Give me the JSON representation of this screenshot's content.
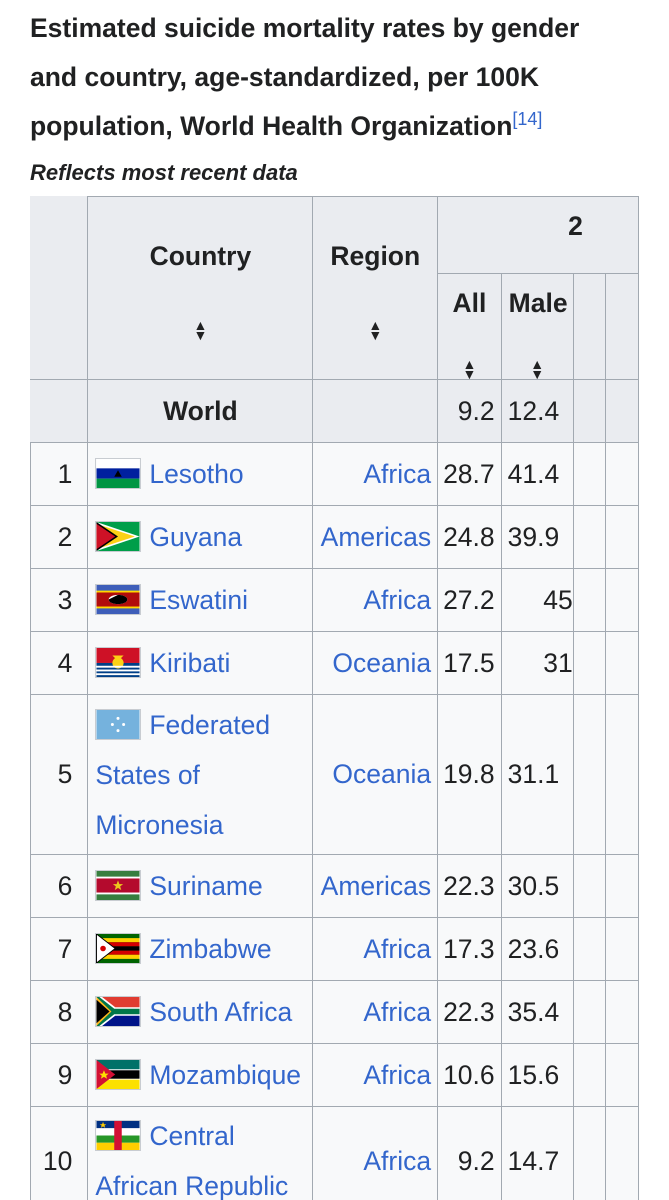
{
  "caption": {
    "title": "Estimated suicide mortality rates by gender and country, age-standardized, per 100K population, World Health Organization",
    "ref": "[14]",
    "subtitle": "Reflects most recent data"
  },
  "table": {
    "group_header": "2",
    "headers": {
      "country": "Country",
      "region": "Region",
      "all": "All",
      "male": "Male"
    },
    "sort_icon": "sort-icon",
    "world": {
      "label": "World",
      "all": "9.2",
      "male": "12.4"
    },
    "rows": [
      {
        "rank": "1",
        "country": "Lesotho",
        "flag": "lesotho-flag-icon",
        "region": "Africa",
        "all": "28.7",
        "male": "41.4"
      },
      {
        "rank": "2",
        "country": "Guyana",
        "flag": "guyana-flag-icon",
        "region": "Americas",
        "all": "24.8",
        "male": "39.9"
      },
      {
        "rank": "3",
        "country": "Eswatini",
        "flag": "eswatini-flag-icon",
        "region": "Africa",
        "all": "27.2",
        "male": "45"
      },
      {
        "rank": "4",
        "country": "Kiribati",
        "flag": "kiribati-flag-icon",
        "region": "Oceania",
        "all": "17.5",
        "male": "31"
      },
      {
        "rank": "5",
        "country": "Federated States of Micronesia",
        "flag": "micronesia-flag-icon",
        "region": "Oceania",
        "all": "19.8",
        "male": "31.1"
      },
      {
        "rank": "6",
        "country": "Suriname",
        "flag": "suriname-flag-icon",
        "region": "Americas",
        "all": "22.3",
        "male": "30.5"
      },
      {
        "rank": "7",
        "country": "Zimbabwe",
        "flag": "zimbabwe-flag-icon",
        "region": "Africa",
        "all": "17.3",
        "male": "23.6"
      },
      {
        "rank": "8",
        "country": "South Africa",
        "flag": "south-africa-flag-icon",
        "region": "Africa",
        "all": "22.3",
        "male": "35.4"
      },
      {
        "rank": "9",
        "country": "Mozambique",
        "flag": "mozambique-flag-icon",
        "region": "Africa",
        "all": "10.6",
        "male": "15.6"
      },
      {
        "rank": "10",
        "country": "Central African Republic",
        "flag": "central-african-republic-flag-icon",
        "region": "Africa",
        "all": "9.2",
        "male": "14.7"
      }
    ]
  }
}
